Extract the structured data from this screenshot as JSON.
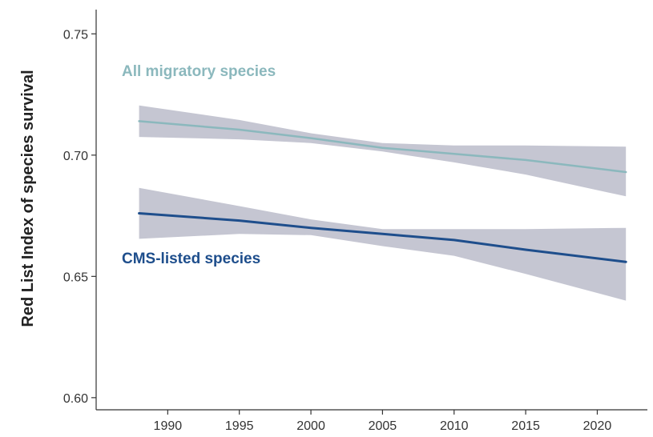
{
  "chart_data": {
    "type": "line",
    "title": "",
    "xlabel": "",
    "ylabel": "Red List Index of species survival",
    "xlim": [
      1985,
      2023.5
    ],
    "ylim": [
      0.595,
      0.76
    ],
    "x_ticks": [
      1990,
      1995,
      2000,
      2005,
      2010,
      2015,
      2020
    ],
    "y_ticks": [
      "0.60",
      "0.65",
      "0.70",
      "0.75"
    ],
    "grid": false,
    "legend": "inline labels",
    "series": [
      {
        "name": "All migratory species",
        "color": "#8bb8bd",
        "x": [
          1988,
          1995,
          2000,
          2005,
          2010,
          2015,
          2022
        ],
        "values": [
          0.714,
          0.7105,
          0.707,
          0.703,
          0.7005,
          0.698,
          0.693
        ],
        "ci_lower": [
          0.7075,
          0.7065,
          0.705,
          0.7015,
          0.697,
          0.692,
          0.683
        ],
        "ci_upper": [
          0.7205,
          0.7145,
          0.709,
          0.705,
          0.704,
          0.704,
          0.7035
        ]
      },
      {
        "name": "CMS-listed species",
        "color": "#1e4e8c",
        "x": [
          1988,
          1995,
          2000,
          2005,
          2010,
          2015,
          2022
        ],
        "values": [
          0.676,
          0.673,
          0.67,
          0.6675,
          0.665,
          0.661,
          0.656
        ],
        "ci_lower": [
          0.6655,
          0.6675,
          0.667,
          0.6625,
          0.6585,
          0.651,
          0.64
        ],
        "ci_upper": [
          0.6865,
          0.679,
          0.6735,
          0.6695,
          0.6695,
          0.6695,
          0.67
        ]
      }
    ],
    "band_color": "#c5c6d2"
  }
}
